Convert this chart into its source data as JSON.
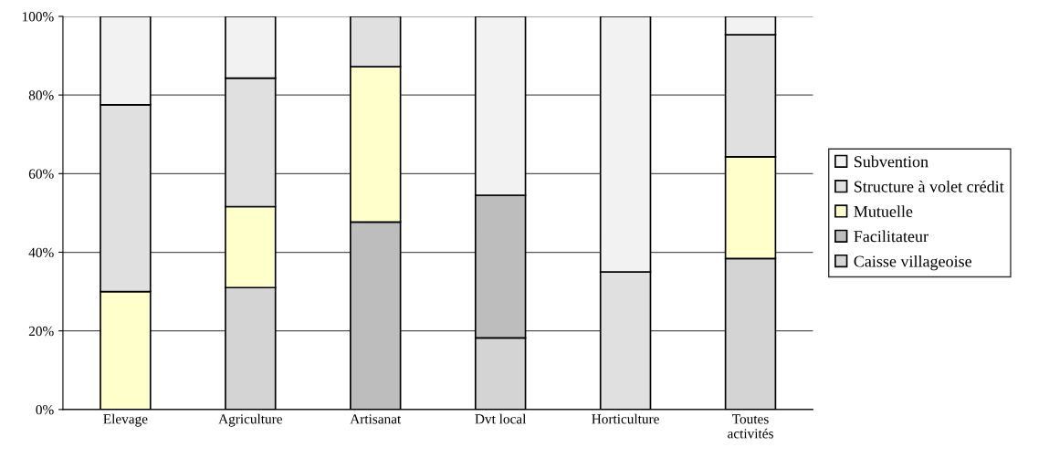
{
  "chart_data": {
    "type": "bar",
    "stacked": true,
    "categories": [
      "Elevage",
      "Agriculture",
      "Artisanat",
      "Dvt local",
      "Horticulture",
      "Toutes\nactivités"
    ],
    "series": [
      {
        "name": "Caisse villageoise",
        "color": "#d4d4d4",
        "values": [
          null,
          31,
          null,
          18.2,
          null,
          38.4
        ]
      },
      {
        "name": "Facilitateur",
        "color": "#bdbdbd",
        "values": [
          null,
          null,
          47.7,
          36.3,
          null,
          null
        ]
      },
      {
        "name": "Mutuelle",
        "color": "#ffffcc",
        "values": [
          30,
          20.6,
          39.5,
          null,
          null,
          25.9
        ]
      },
      {
        "name": "Structure à volet crédit",
        "color": "#e0e0e0",
        "values": [
          47.5,
          32.7,
          12.8,
          null,
          35,
          31
        ]
      },
      {
        "name": "Subvention",
        "color": "#f2f2f2",
        "values": [
          22.5,
          15.7,
          null,
          45.5,
          65,
          4.7
        ]
      }
    ],
    "ylim": [
      0,
      100
    ],
    "yticks": [
      {
        "value": 0,
        "label": "0%"
      },
      {
        "value": 20,
        "label": "20%"
      },
      {
        "value": 40,
        "label": "40%"
      },
      {
        "value": 60,
        "label": "60%"
      },
      {
        "value": 80,
        "label": "80%"
      },
      {
        "value": 100,
        "label": "100%"
      }
    ],
    "grid": "y",
    "legend": "right"
  }
}
